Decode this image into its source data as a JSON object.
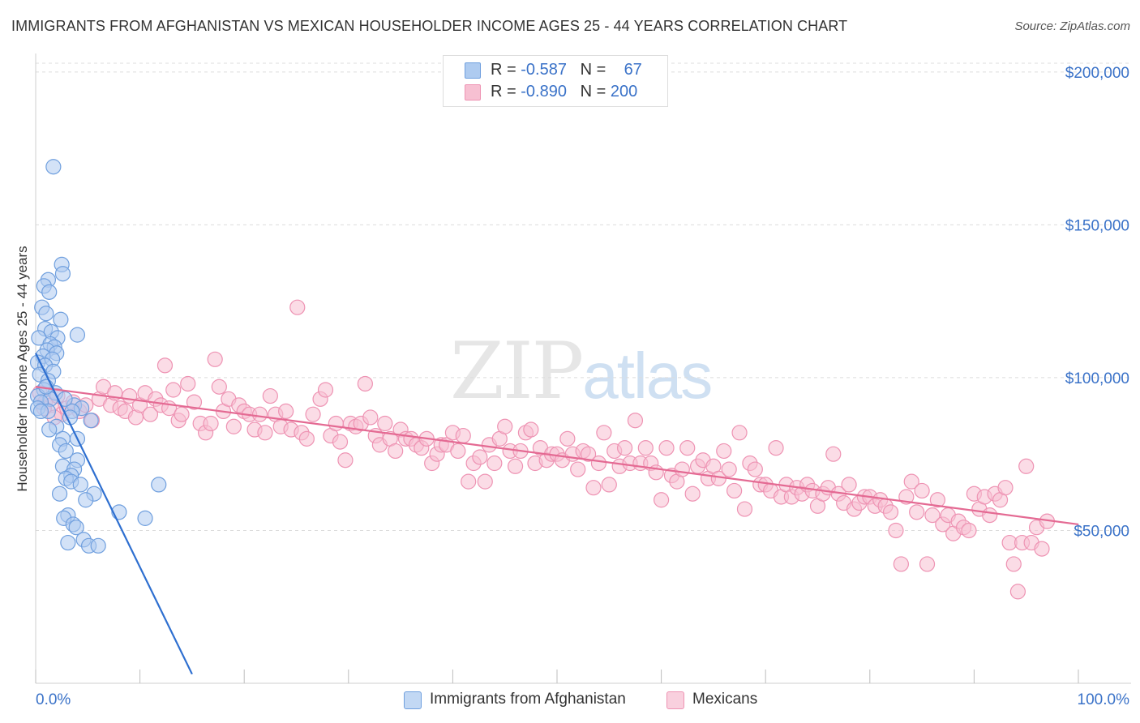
{
  "header": {
    "title": "IMMIGRANTS FROM AFGHANISTAN VS MEXICAN HOUSEHOLDER INCOME AGES 25 - 44 YEARS CORRELATION CHART",
    "source": "Source: ZipAtlas.com"
  },
  "watermark": {
    "zip": "ZIP",
    "atlas": "atlas"
  },
  "legend": {
    "afghan": {
      "r_label": "R = ",
      "r_value": "-0.587",
      "n_label": "N = ",
      "n_value": "67"
    },
    "mexican": {
      "r_label": "R = ",
      "r_value": "-0.890",
      "n_label": "N = ",
      "n_value": "200"
    }
  },
  "colors": {
    "afghan_fill": "#aecbf0",
    "afghan_stroke": "#6f9fde",
    "afghan_line": "#2e6fd0",
    "mexican_fill": "#f7c0d2",
    "mexican_stroke": "#ee93b3",
    "mexican_line": "#e46a93",
    "tick_label": "#3a72c8"
  },
  "chart_data": {
    "type": "scatter",
    "title": "IMMIGRANTS FROM AFGHANISTAN VS MEXICAN HOUSEHOLDER INCOME AGES 25 - 44 YEARS CORRELATION CHART",
    "xlabel": "",
    "ylabel": "Householder Income Ages 25 - 44 years",
    "x_tick_labels": [
      "0.0%",
      "100.0%"
    ],
    "y_tick_labels": [
      "$50,000",
      "$100,000",
      "$150,000",
      "$200,000"
    ],
    "xlim": [
      0,
      100
    ],
    "ylim": [
      0,
      205000
    ],
    "grid": true,
    "legend_position": "top-center",
    "series": [
      {
        "name": "Immigrants from Afghanistan",
        "r": -0.587,
        "n": 67,
        "trend": [
          [
            0.0,
            108000
          ],
          [
            15.0,
            3000
          ]
        ],
        "points": [
          [
            1.7,
            169000
          ],
          [
            2.5,
            137000
          ],
          [
            2.6,
            134000
          ],
          [
            1.2,
            132000
          ],
          [
            0.8,
            130000
          ],
          [
            1.3,
            128000
          ],
          [
            0.6,
            123000
          ],
          [
            1.0,
            121000
          ],
          [
            2.4,
            119000
          ],
          [
            0.9,
            116000
          ],
          [
            1.5,
            115000
          ],
          [
            4.0,
            114000
          ],
          [
            0.3,
            113000
          ],
          [
            2.1,
            113000
          ],
          [
            1.4,
            111000
          ],
          [
            1.8,
            110000
          ],
          [
            1.1,
            109000
          ],
          [
            2.0,
            108000
          ],
          [
            0.7,
            107000
          ],
          [
            1.6,
            106000
          ],
          [
            0.2,
            105000
          ],
          [
            0.9,
            104000
          ],
          [
            1.7,
            102000
          ],
          [
            0.4,
            101000
          ],
          [
            1.2,
            99000
          ],
          [
            0.8,
            96000
          ],
          [
            1.9,
            95000
          ],
          [
            0.2,
            94000
          ],
          [
            1.4,
            93000
          ],
          [
            0.5,
            92000
          ],
          [
            0.2,
            90000
          ],
          [
            3.7,
            91000
          ],
          [
            4.4,
            90000
          ],
          [
            3.5,
            89000
          ],
          [
            1.2,
            89000
          ],
          [
            5.3,
            86000
          ],
          [
            2.0,
            84000
          ],
          [
            1.3,
            83000
          ],
          [
            2.6,
            80000
          ],
          [
            4.0,
            80000
          ],
          [
            2.3,
            78000
          ],
          [
            2.9,
            76000
          ],
          [
            4.0,
            73000
          ],
          [
            2.6,
            71000
          ],
          [
            3.7,
            70000
          ],
          [
            3.4,
            68000
          ],
          [
            2.9,
            67000
          ],
          [
            3.4,
            66000
          ],
          [
            4.3,
            65000
          ],
          [
            11.8,
            65000
          ],
          [
            2.3,
            62000
          ],
          [
            5.6,
            62000
          ],
          [
            4.8,
            60000
          ],
          [
            8.0,
            56000
          ],
          [
            10.5,
            54000
          ],
          [
            3.1,
            55000
          ],
          [
            2.7,
            54000
          ],
          [
            3.6,
            52000
          ],
          [
            3.9,
            51000
          ],
          [
            4.6,
            47000
          ],
          [
            3.1,
            46000
          ],
          [
            5.1,
            45000
          ],
          [
            6.0,
            45000
          ],
          [
            0.5,
            89000
          ],
          [
            1.0,
            97000
          ],
          [
            2.8,
            93000
          ],
          [
            3.3,
            87000
          ]
        ]
      },
      {
        "name": "Mexicans",
        "r": -0.89,
        "n": 200,
        "trend": [
          [
            0.0,
            97000
          ],
          [
            100.0,
            52000
          ]
        ],
        "points": [
          [
            0.4,
            95000
          ],
          [
            0.9,
            92000
          ],
          [
            1.5,
            91000
          ],
          [
            2.1,
            94000
          ],
          [
            2.5,
            88000
          ],
          [
            3.0,
            90000
          ],
          [
            3.6,
            92000
          ],
          [
            4.2,
            89000
          ],
          [
            4.8,
            91000
          ],
          [
            5.4,
            86000
          ],
          [
            6.1,
            93000
          ],
          [
            6.5,
            97000
          ],
          [
            7.2,
            91000
          ],
          [
            7.6,
            95000
          ],
          [
            8.1,
            90000
          ],
          [
            8.6,
            89000
          ],
          [
            9.0,
            94000
          ],
          [
            9.6,
            87000
          ],
          [
            10.0,
            91000
          ],
          [
            10.5,
            95000
          ],
          [
            11.0,
            88000
          ],
          [
            11.5,
            93000
          ],
          [
            12.0,
            91000
          ],
          [
            12.4,
            104000
          ],
          [
            12.8,
            90000
          ],
          [
            13.2,
            96000
          ],
          [
            13.7,
            86000
          ],
          [
            14.0,
            88000
          ],
          [
            14.6,
            98000
          ],
          [
            15.2,
            92000
          ],
          [
            15.8,
            85000
          ],
          [
            16.3,
            82000
          ],
          [
            16.8,
            85000
          ],
          [
            17.2,
            106000
          ],
          [
            17.6,
            97000
          ],
          [
            18.0,
            89000
          ],
          [
            18.5,
            93000
          ],
          [
            19.0,
            84000
          ],
          [
            19.5,
            91000
          ],
          [
            20.0,
            89000
          ],
          [
            20.5,
            88000
          ],
          [
            21.0,
            83000
          ],
          [
            21.5,
            88000
          ],
          [
            22.0,
            82000
          ],
          [
            22.5,
            94000
          ],
          [
            23.0,
            88000
          ],
          [
            23.5,
            84000
          ],
          [
            24.0,
            89000
          ],
          [
            24.5,
            83000
          ],
          [
            25.1,
            123000
          ],
          [
            25.5,
            82000
          ],
          [
            26.0,
            80000
          ],
          [
            26.6,
            88000
          ],
          [
            27.3,
            93000
          ],
          [
            27.8,
            96000
          ],
          [
            28.3,
            81000
          ],
          [
            28.8,
            85000
          ],
          [
            29.2,
            79000
          ],
          [
            29.7,
            73000
          ],
          [
            30.2,
            85000
          ],
          [
            30.7,
            84000
          ],
          [
            31.2,
            85000
          ],
          [
            31.6,
            98000
          ],
          [
            32.1,
            87000
          ],
          [
            32.6,
            81000
          ],
          [
            33.0,
            78000
          ],
          [
            33.5,
            85000
          ],
          [
            34.0,
            80000
          ],
          [
            34.5,
            76000
          ],
          [
            35.0,
            83000
          ],
          [
            35.5,
            80000
          ],
          [
            36.0,
            80000
          ],
          [
            36.5,
            78000
          ],
          [
            37.0,
            77000
          ],
          [
            37.5,
            80000
          ],
          [
            38.0,
            72000
          ],
          [
            38.5,
            75000
          ],
          [
            38.9,
            78000
          ],
          [
            39.4,
            78000
          ],
          [
            40.0,
            82000
          ],
          [
            40.5,
            76000
          ],
          [
            41.0,
            81000
          ],
          [
            41.5,
            66000
          ],
          [
            42.0,
            72000
          ],
          [
            42.6,
            74000
          ],
          [
            43.1,
            66000
          ],
          [
            43.5,
            78000
          ],
          [
            44.0,
            72000
          ],
          [
            44.5,
            80000
          ],
          [
            45.0,
            84000
          ],
          [
            45.5,
            76000
          ],
          [
            46.0,
            71000
          ],
          [
            46.5,
            76000
          ],
          [
            47.0,
            82000
          ],
          [
            47.5,
            83000
          ],
          [
            47.9,
            72000
          ],
          [
            48.4,
            77000
          ],
          [
            49.0,
            73000
          ],
          [
            49.5,
            75000
          ],
          [
            50.0,
            75000
          ],
          [
            50.5,
            73000
          ],
          [
            51.0,
            80000
          ],
          [
            51.5,
            75000
          ],
          [
            52.0,
            70000
          ],
          [
            52.5,
            76000
          ],
          [
            53.0,
            75000
          ],
          [
            53.5,
            64000
          ],
          [
            54.0,
            72000
          ],
          [
            54.5,
            82000
          ],
          [
            55.0,
            65000
          ],
          [
            55.5,
            76000
          ],
          [
            56.0,
            71000
          ],
          [
            56.5,
            77000
          ],
          [
            57.0,
            72000
          ],
          [
            57.5,
            86000
          ],
          [
            58.0,
            72000
          ],
          [
            58.5,
            77000
          ],
          [
            59.0,
            72000
          ],
          [
            59.5,
            69000
          ],
          [
            60.0,
            60000
          ],
          [
            60.5,
            77000
          ],
          [
            61.0,
            68000
          ],
          [
            61.5,
            66000
          ],
          [
            62.0,
            70000
          ],
          [
            62.5,
            77000
          ],
          [
            63.0,
            62000
          ],
          [
            63.5,
            71000
          ],
          [
            64.0,
            73000
          ],
          [
            64.5,
            67000
          ],
          [
            65.0,
            71000
          ],
          [
            65.5,
            67000
          ],
          [
            66.0,
            76000
          ],
          [
            66.5,
            70000
          ],
          [
            67.0,
            63000
          ],
          [
            67.5,
            82000
          ],
          [
            68.0,
            57000
          ],
          [
            68.5,
            72000
          ],
          [
            69.0,
            70000
          ],
          [
            69.5,
            65000
          ],
          [
            70.0,
            65000
          ],
          [
            70.5,
            63000
          ],
          [
            71.0,
            77000
          ],
          [
            71.5,
            61000
          ],
          [
            72.0,
            65000
          ],
          [
            72.5,
            61000
          ],
          [
            73.0,
            64000
          ],
          [
            73.5,
            62000
          ],
          [
            74.0,
            65000
          ],
          [
            74.5,
            63000
          ],
          [
            75.0,
            58000
          ],
          [
            75.5,
            62000
          ],
          [
            76.0,
            64000
          ],
          [
            76.5,
            75000
          ],
          [
            77.0,
            62000
          ],
          [
            77.5,
            59000
          ],
          [
            78.0,
            65000
          ],
          [
            78.5,
            57000
          ],
          [
            79.0,
            59000
          ],
          [
            79.5,
            61000
          ],
          [
            80.0,
            61000
          ],
          [
            80.5,
            58000
          ],
          [
            81.0,
            60000
          ],
          [
            81.5,
            58000
          ],
          [
            82.0,
            56000
          ],
          [
            82.5,
            50000
          ],
          [
            83.0,
            39000
          ],
          [
            83.5,
            61000
          ],
          [
            84.0,
            66000
          ],
          [
            84.5,
            56000
          ],
          [
            85.0,
            63000
          ],
          [
            85.5,
            39000
          ],
          [
            86.0,
            55000
          ],
          [
            86.5,
            60000
          ],
          [
            87.0,
            52000
          ],
          [
            87.5,
            55000
          ],
          [
            88.0,
            49000
          ],
          [
            88.5,
            53000
          ],
          [
            89.0,
            51000
          ],
          [
            89.5,
            50000
          ],
          [
            90.0,
            62000
          ],
          [
            90.5,
            57000
          ],
          [
            91.0,
            61000
          ],
          [
            91.5,
            55000
          ],
          [
            92.0,
            62000
          ],
          [
            92.5,
            60000
          ],
          [
            93.0,
            64000
          ],
          [
            93.4,
            46000
          ],
          [
            93.8,
            39000
          ],
          [
            94.2,
            30000
          ],
          [
            94.6,
            46000
          ],
          [
            95.0,
            71000
          ],
          [
            95.5,
            46000
          ],
          [
            96.0,
            51000
          ],
          [
            96.5,
            44000
          ],
          [
            97.0,
            53000
          ],
          [
            0.8,
            90000
          ],
          [
            1.8,
            87000
          ]
        ]
      }
    ]
  }
}
